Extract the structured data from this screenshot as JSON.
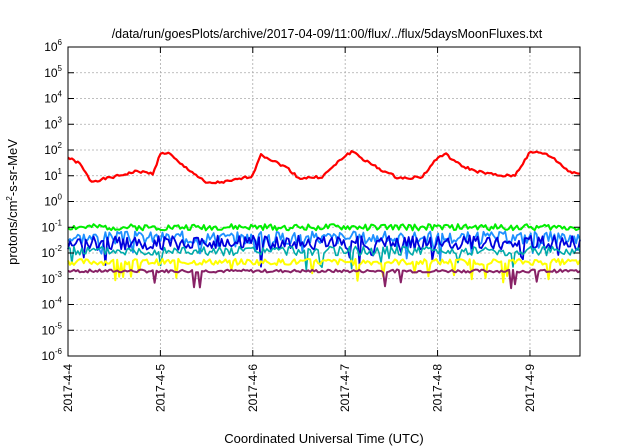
{
  "chart_data": {
    "type": "line",
    "title": "/data/run/goesPlots/archive/2017-04-09/11:00/flux/../flux/5daysMoonFluxes.txt",
    "xlabel": "Coordinated Universal Time (UTC)",
    "ylabel": "protons/cm²-s-sr-MeV",
    "ylabel_parts": {
      "pre": "protons/cm",
      "sup": "2",
      "post": "-s-sr-MeV"
    },
    "yscale": "log",
    "ylim": [
      1e-06,
      1000000.0
    ],
    "y_ticks": [
      {
        "value": -6,
        "base": "10",
        "exp": "-6"
      },
      {
        "value": -5,
        "base": "10",
        "exp": "-5"
      },
      {
        "value": -4,
        "base": "10",
        "exp": "-4"
      },
      {
        "value": -3,
        "base": "10",
        "exp": "-3"
      },
      {
        "value": -2,
        "base": "10",
        "exp": "-2"
      },
      {
        "value": -1,
        "base": "10",
        "exp": "-1"
      },
      {
        "value": 0,
        "base": "10",
        "exp": "0"
      },
      {
        "value": 1,
        "base": "10",
        "exp": "1"
      },
      {
        "value": 2,
        "base": "10",
        "exp": "2"
      },
      {
        "value": 3,
        "base": "10",
        "exp": "3"
      },
      {
        "value": 4,
        "base": "10",
        "exp": "4"
      },
      {
        "value": 5,
        "base": "10",
        "exp": "5"
      },
      {
        "value": 6,
        "base": "10",
        "exp": "6"
      }
    ],
    "xlim": [
      "2017-04-04 00:00",
      "2017-04-09 13:00"
    ],
    "x_ticks": [
      "2017-4-4",
      "2017-4-5",
      "2017-4-6",
      "2017-4-7",
      "2017-4-8",
      "2017-4-9"
    ],
    "grid": true,
    "series": [
      {
        "color": "#ff0000",
        "width": 2.2,
        "seed": 1,
        "noise": 0.05,
        "spike": 0.0,
        "profile": [
          [
            "2017-04-04 00:00",
            50
          ],
          [
            "2017-04-04 03:00",
            30
          ],
          [
            "2017-04-04 06:00",
            6
          ],
          [
            "2017-04-04 12:00",
            9
          ],
          [
            "2017-04-04 18:00",
            15
          ],
          [
            "2017-04-04 22:00",
            12
          ],
          [
            "2017-04-05 00:00",
            70
          ],
          [
            "2017-04-05 02:00",
            80
          ],
          [
            "2017-04-05 05:00",
            30
          ],
          [
            "2017-04-05 08:00",
            15
          ],
          [
            "2017-04-05 12:00",
            5
          ],
          [
            "2017-04-05 18:00",
            6
          ],
          [
            "2017-04-06 00:00",
            10
          ],
          [
            "2017-04-06 02:00",
            70
          ],
          [
            "2017-04-06 05:00",
            40
          ],
          [
            "2017-04-06 09:00",
            20
          ],
          [
            "2017-04-06 12:00",
            8
          ],
          [
            "2017-04-06 18:00",
            9
          ],
          [
            "2017-04-07 00:00",
            60
          ],
          [
            "2017-04-07 02:00",
            90
          ],
          [
            "2017-04-07 05:00",
            40
          ],
          [
            "2017-04-07 10:00",
            15
          ],
          [
            "2017-04-07 14:00",
            8
          ],
          [
            "2017-04-07 20:00",
            9
          ],
          [
            "2017-04-08 00:00",
            50
          ],
          [
            "2017-04-08 02:00",
            70
          ],
          [
            "2017-04-08 06:00",
            25
          ],
          [
            "2017-04-08 10:00",
            15
          ],
          [
            "2017-04-08 16:00",
            10
          ],
          [
            "2017-04-08 20:00",
            10
          ],
          [
            "2017-04-09 00:00",
            80
          ],
          [
            "2017-04-09 03:00",
            80
          ],
          [
            "2017-04-09 06:00",
            50
          ],
          [
            "2017-04-09 10:00",
            15
          ],
          [
            "2017-04-09 13:00",
            12
          ]
        ]
      },
      {
        "color": "#00ee00",
        "width": 2.0,
        "seed": 2,
        "noise": 0.12,
        "spike": 0.0,
        "profile": [
          [
            "2017-04-04 00:00",
            0.1
          ],
          [
            "2017-04-09 13:00",
            0.1
          ]
        ]
      },
      {
        "color": "#1e90ff",
        "width": 1.8,
        "seed": 3,
        "noise": 0.25,
        "spike": 0.06,
        "profile": [
          [
            "2017-04-04 00:00",
            0.04
          ],
          [
            "2017-04-09 13:00",
            0.04
          ]
        ]
      },
      {
        "color": "#0000dd",
        "width": 1.8,
        "seed": 4,
        "noise": 0.28,
        "spike": 0.06,
        "profile": [
          [
            "2017-04-04 00:00",
            0.025
          ],
          [
            "2017-04-09 13:00",
            0.025
          ]
        ]
      },
      {
        "color": "#00aaaa",
        "width": 1.6,
        "seed": 5,
        "noise": 0.18,
        "spike": 0.04,
        "profile": [
          [
            "2017-04-04 00:00",
            0.012
          ],
          [
            "2017-04-09 13:00",
            0.012
          ]
        ]
      },
      {
        "color": "#ffff00",
        "width": 2.0,
        "seed": 6,
        "noise": 0.12,
        "spike": 0.05,
        "profile": [
          [
            "2017-04-04 00:00",
            0.0045
          ],
          [
            "2017-04-09 13:00",
            0.0045
          ]
        ]
      },
      {
        "color": "#882266",
        "width": 2.0,
        "seed": 7,
        "noise": 0.06,
        "spike": 0.02,
        "profile": [
          [
            "2017-04-04 00:00",
            0.002
          ],
          [
            "2017-04-09 13:00",
            0.002
          ]
        ]
      }
    ]
  }
}
